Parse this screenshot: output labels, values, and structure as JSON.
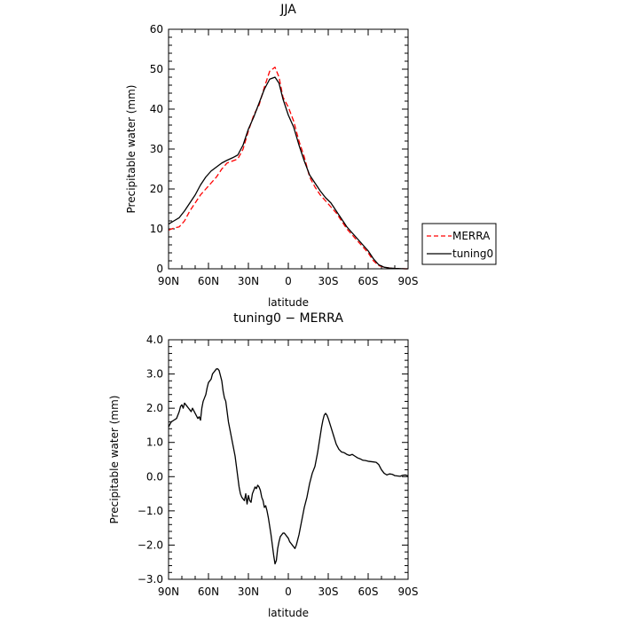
{
  "chart_data": [
    {
      "type": "line",
      "title": "JJA",
      "xlabel": "latitude",
      "ylabel": "Precipitable water (mm)",
      "xlim": [
        90,
        -90
      ],
      "ylim": [
        0,
        60
      ],
      "xticks": [
        90,
        60,
        30,
        0,
        -30,
        -60,
        -90
      ],
      "xtick_labels": [
        "90N",
        "60N",
        "30N",
        "0",
        "30S",
        "60S",
        "90S"
      ],
      "yticks": [
        0,
        10,
        20,
        30,
        40,
        50,
        60
      ],
      "ytick_labels": [
        "0",
        "10",
        "20",
        "30",
        "40",
        "50",
        "60"
      ],
      "legend_position": "right",
      "series": [
        {
          "name": "MERRA",
          "color": "#ff0000",
          "dash": true,
          "x": [
            90,
            86,
            82,
            78,
            74,
            70,
            66,
            62,
            58,
            54,
            50,
            46,
            42,
            38,
            34,
            30,
            26,
            22,
            18,
            14,
            10,
            7,
            4,
            0,
            -4,
            -8,
            -12,
            -16,
            -20,
            -24,
            -28,
            -32,
            -36,
            -40,
            -44,
            -48,
            -52,
            -56,
            -60,
            -64,
            -68,
            -72,
            -76,
            -80,
            -84,
            -88,
            -90
          ],
          "y": [
            9.7,
            10.2,
            10.5,
            12.0,
            14.5,
            16.5,
            18.5,
            20.0,
            21.5,
            23.0,
            25.0,
            26.5,
            27.0,
            27.5,
            30.0,
            34.5,
            38.5,
            41.0,
            45.5,
            49.5,
            50.5,
            48.0,
            43.0,
            40.5,
            37.0,
            32.0,
            28.0,
            23.0,
            20.5,
            18.5,
            17.0,
            15.5,
            14.0,
            12.0,
            10.0,
            8.5,
            7.0,
            5.5,
            4.0,
            2.0,
            0.8,
            0.4,
            0.2,
            0.1,
            0.05,
            0.0,
            0.0
          ]
        },
        {
          "name": "tuning0",
          "color": "#000000",
          "dash": false,
          "x": [
            90,
            86,
            82,
            78,
            74,
            70,
            66,
            62,
            58,
            54,
            50,
            46,
            42,
            38,
            34,
            30,
            26,
            22,
            18,
            14,
            10,
            7,
            4,
            0,
            -4,
            -8,
            -12,
            -16,
            -20,
            -24,
            -28,
            -32,
            -36,
            -40,
            -44,
            -48,
            -52,
            -56,
            -60,
            -64,
            -68,
            -72,
            -76,
            -80,
            -84,
            -88,
            -90
          ],
          "y": [
            11.2,
            12.0,
            12.8,
            14.5,
            16.5,
            18.5,
            21.0,
            23.0,
            24.5,
            25.5,
            26.5,
            27.2,
            27.8,
            28.5,
            31.0,
            35.0,
            38.0,
            41.5,
            45.0,
            47.5,
            48.0,
            46.5,
            42.5,
            38.5,
            35.5,
            31.0,
            27.0,
            23.5,
            21.5,
            19.5,
            17.8,
            16.5,
            14.5,
            12.5,
            10.5,
            9.0,
            7.5,
            6.0,
            4.5,
            2.5,
            1.0,
            0.4,
            0.2,
            0.1,
            0.05,
            0.0,
            0.0
          ]
        }
      ]
    },
    {
      "type": "line",
      "title": "tuning0 − MERRA",
      "xlabel": "latitude",
      "ylabel": "Precipitable water (mm)",
      "xlim": [
        90,
        -90
      ],
      "ylim": [
        -3.0,
        4.0
      ],
      "xticks": [
        90,
        60,
        30,
        0,
        -30,
        -60,
        -90
      ],
      "xtick_labels": [
        "90N",
        "60N",
        "30N",
        "0",
        "30S",
        "60S",
        "90S"
      ],
      "yticks": [
        -3.0,
        -2.0,
        -1.0,
        0.0,
        1.0,
        2.0,
        3.0,
        4.0
      ],
      "ytick_labels": [
        "−3.0",
        "−2.0",
        "−1.0",
        "0.0",
        "1.0",
        "2.0",
        "3.0",
        "4.0"
      ],
      "series": [
        {
          "name": "",
          "color": "#000000",
          "dash": false,
          "x": [
            90,
            88,
            86,
            84,
            82,
            81,
            80,
            79,
            78,
            77,
            76,
            75,
            74,
            73,
            72,
            70,
            68,
            67,
            66,
            65,
            64,
            63,
            62,
            61,
            60,
            59,
            58,
            57,
            56,
            55,
            54,
            53,
            52,
            51,
            50,
            49,
            48,
            47,
            46,
            45,
            44,
            43,
            42,
            41,
            40,
            39,
            38,
            37,
            36,
            35,
            34,
            33,
            32,
            31,
            30,
            29,
            28,
            27,
            26,
            25,
            24,
            23,
            22,
            21,
            20,
            19,
            18,
            17,
            16,
            15,
            14,
            13,
            12,
            11,
            10,
            9,
            8,
            7,
            6,
            5,
            4,
            3,
            2,
            1,
            0,
            -1,
            -2,
            -3,
            -4,
            -5,
            -6,
            -8,
            -10,
            -12,
            -14,
            -16,
            -18,
            -20,
            -21,
            -22,
            -23,
            -24,
            -25,
            -26,
            -27,
            -28,
            -29,
            -30,
            -32,
            -34,
            -36,
            -38,
            -40,
            -42,
            -44,
            -46,
            -48,
            -50,
            -52,
            -54,
            -56,
            -58,
            -60,
            -62,
            -64,
            -66,
            -68,
            -70,
            -72,
            -74,
            -76,
            -78,
            -80,
            -82,
            -84,
            -86,
            -88,
            -90
          ],
          "y": [
            1.45,
            1.6,
            1.65,
            1.7,
            1.9,
            2.05,
            2.1,
            2.0,
            2.15,
            2.1,
            2.05,
            2.0,
            1.95,
            1.9,
            2.0,
            1.85,
            1.7,
            1.75,
            1.65,
            2.0,
            2.2,
            2.3,
            2.4,
            2.6,
            2.75,
            2.8,
            2.85,
            3.0,
            3.05,
            3.1,
            3.15,
            3.15,
            3.1,
            2.95,
            2.8,
            2.5,
            2.3,
            2.2,
            1.9,
            1.6,
            1.4,
            1.2,
            1.0,
            0.8,
            0.6,
            0.3,
            0.0,
            -0.3,
            -0.5,
            -0.6,
            -0.65,
            -0.7,
            -0.5,
            -0.8,
            -0.55,
            -0.7,
            -0.75,
            -0.5,
            -0.4,
            -0.3,
            -0.35,
            -0.25,
            -0.3,
            -0.4,
            -0.6,
            -0.7,
            -0.9,
            -0.85,
            -1.0,
            -1.2,
            -1.45,
            -1.7,
            -2.0,
            -2.3,
            -2.55,
            -2.45,
            -2.1,
            -1.9,
            -1.75,
            -1.7,
            -1.65,
            -1.65,
            -1.7,
            -1.75,
            -1.8,
            -1.9,
            -1.95,
            -2.0,
            -2.05,
            -2.1,
            -2.0,
            -1.7,
            -1.3,
            -0.9,
            -0.6,
            -0.2,
            0.1,
            0.3,
            0.5,
            0.7,
            0.95,
            1.2,
            1.45,
            1.65,
            1.8,
            1.85,
            1.8,
            1.7,
            1.45,
            1.2,
            0.95,
            0.8,
            0.72,
            0.7,
            0.65,
            0.62,
            0.65,
            0.6,
            0.55,
            0.52,
            0.48,
            0.47,
            0.45,
            0.44,
            0.43,
            0.42,
            0.35,
            0.2,
            0.1,
            0.05,
            0.08,
            0.07,
            0.03,
            0.02,
            0.01,
            0.04,
            0.05,
            0.02
          ]
        }
      ]
    }
  ]
}
